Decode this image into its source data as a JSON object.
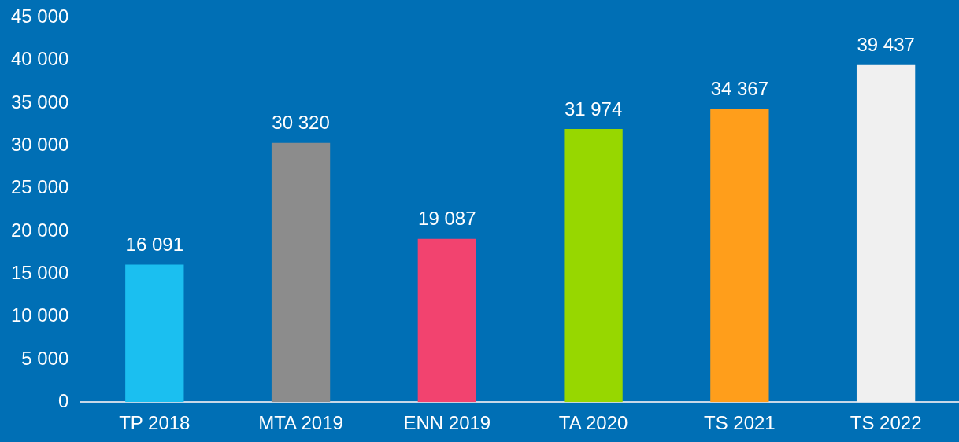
{
  "chart_data": {
    "type": "bar",
    "categories": [
      "TP 2018",
      "MTA 2019",
      "ENN 2019",
      "TA 2020",
      "TS 2021",
      "TS 2022"
    ],
    "values": [
      16091,
      30320,
      19087,
      31974,
      34367,
      39437
    ],
    "colors": [
      "#1bbff0",
      "#8c8c8c",
      "#f2436f",
      "#97d700",
      "#ff9e1b",
      "#f0f0f0"
    ],
    "value_labels": [
      "16 091",
      "30 320",
      "19 087",
      "31 974",
      "34 367",
      "39 437"
    ],
    "ylim": [
      0,
      45000
    ],
    "yticks": [
      {
        "value": 0,
        "label": "0"
      },
      {
        "value": 5000,
        "label": "5 000"
      },
      {
        "value": 10000,
        "label": "10 000"
      },
      {
        "value": 15000,
        "label": "15 000"
      },
      {
        "value": 20000,
        "label": "20 000"
      },
      {
        "value": 25000,
        "label": "25 000"
      },
      {
        "value": 30000,
        "label": "30 000"
      },
      {
        "value": 35000,
        "label": "35 000"
      },
      {
        "value": 40000,
        "label": "40 000"
      },
      {
        "value": 45000,
        "label": "45 000"
      }
    ],
    "grid": false,
    "legend": false
  }
}
